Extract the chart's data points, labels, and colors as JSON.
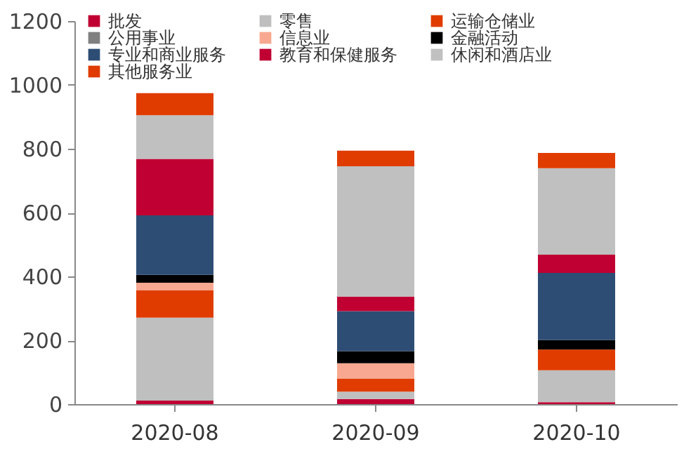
{
  "chart_data": {
    "type": "bar",
    "stacked": true,
    "categories": [
      "2020-08",
      "2020-09",
      "2020-10"
    ],
    "series": [
      {
        "name": "批发",
        "color": "#c00033",
        "values": [
          11,
          16,
          6
        ]
      },
      {
        "name": "零售",
        "color": "#bfbfbf",
        "values": [
          260,
          23,
          100
        ]
      },
      {
        "name": "运输仓储业",
        "color": "#e03c00",
        "values": [
          86,
          41,
          65
        ]
      },
      {
        "name": "公用事业",
        "color": "#808080",
        "values": [
          0,
          0,
          0
        ]
      },
      {
        "name": "信息业",
        "color": "#f8a890",
        "values": [
          23,
          48,
          0
        ]
      },
      {
        "name": "金融活动",
        "color": "#000000",
        "values": [
          25,
          38,
          30
        ]
      },
      {
        "name": "专业和商业服务",
        "color": "#2e4d75",
        "values": [
          186,
          125,
          210
        ]
      },
      {
        "name": "教育和保健服务",
        "color": "#c00033",
        "values": [
          177,
          46,
          57
        ]
      },
      {
        "name": "休闲和酒店业",
        "color": "#c0c0c0",
        "values": [
          137,
          408,
          271
        ]
      },
      {
        "name": "其他服务业",
        "color": "#e03c00",
        "values": [
          69,
          49,
          48
        ]
      }
    ],
    "ylim": [
      0,
      1200
    ],
    "yticks": [
      0,
      200,
      400,
      600,
      800,
      1000,
      1200
    ],
    "grid": false,
    "legend": "top"
  }
}
